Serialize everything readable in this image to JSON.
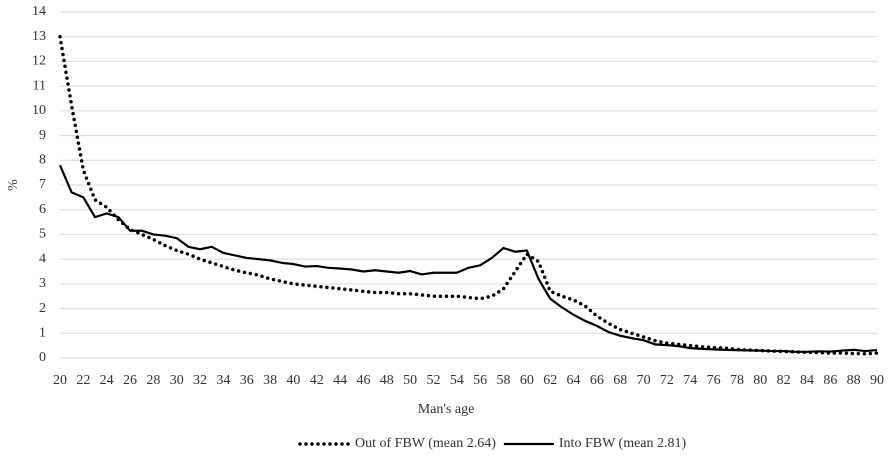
{
  "chart_data": {
    "type": "line",
    "x_label": "Man's age",
    "y_label": "%",
    "x": [
      20,
      21,
      22,
      23,
      24,
      25,
      26,
      27,
      28,
      29,
      30,
      31,
      32,
      33,
      34,
      35,
      36,
      37,
      38,
      39,
      40,
      41,
      42,
      43,
      44,
      45,
      46,
      47,
      48,
      49,
      50,
      51,
      52,
      53,
      54,
      55,
      56,
      57,
      58,
      59,
      60,
      61,
      62,
      63,
      64,
      65,
      66,
      67,
      68,
      69,
      70,
      71,
      72,
      73,
      74,
      75,
      76,
      77,
      78,
      79,
      80,
      81,
      82,
      83,
      84,
      85,
      86,
      87,
      88,
      89,
      90
    ],
    "xlim": [
      20,
      90
    ],
    "xticks": [
      20,
      22,
      24,
      26,
      28,
      30,
      32,
      34,
      36,
      38,
      40,
      42,
      44,
      46,
      48,
      50,
      52,
      54,
      56,
      58,
      60,
      62,
      64,
      66,
      68,
      70,
      72,
      74,
      76,
      78,
      80,
      82,
      84,
      86,
      88,
      90
    ],
    "ylim": [
      0,
      14
    ],
    "yticks": [
      0,
      1,
      2,
      3,
      4,
      5,
      6,
      7,
      8,
      9,
      10,
      11,
      12,
      13,
      14
    ],
    "grid": true,
    "legend": "bottom",
    "series": [
      {
        "name": "Out of FBW (mean 2.64)",
        "color": "#000000",
        "style": "dotted",
        "values": [
          13,
          10.2,
          7.6,
          6.4,
          6.1,
          5.6,
          5.2,
          5.0,
          4.8,
          4.55,
          4.35,
          4.2,
          4.0,
          3.85,
          3.7,
          3.55,
          3.45,
          3.35,
          3.2,
          3.1,
          3.0,
          2.95,
          2.9,
          2.85,
          2.8,
          2.75,
          2.7,
          2.65,
          2.65,
          2.6,
          2.6,
          2.55,
          2.5,
          2.5,
          2.5,
          2.45,
          2.4,
          2.5,
          2.8,
          3.5,
          4.2,
          3.9,
          2.7,
          2.5,
          2.35,
          2.1,
          1.7,
          1.4,
          1.15,
          1.0,
          0.85,
          0.7,
          0.6,
          0.55,
          0.5,
          0.45,
          0.42,
          0.4,
          0.35,
          0.32,
          0.3,
          0.28,
          0.27,
          0.25,
          0.23,
          0.22,
          0.2,
          0.2,
          0.18,
          0.17,
          0.2
        ]
      },
      {
        "name": "Into FBW (mean 2.81)",
        "color": "#000000",
        "style": "solid",
        "values": [
          7.8,
          6.7,
          6.5,
          5.7,
          5.85,
          5.7,
          5.15,
          5.15,
          5.0,
          4.95,
          4.85,
          4.5,
          4.4,
          4.5,
          4.25,
          4.15,
          4.05,
          4.0,
          3.95,
          3.85,
          3.8,
          3.7,
          3.72,
          3.65,
          3.62,
          3.58,
          3.5,
          3.55,
          3.5,
          3.45,
          3.52,
          3.38,
          3.45,
          3.45,
          3.45,
          3.65,
          3.75,
          4.05,
          4.45,
          4.3,
          4.35,
          3.2,
          2.4,
          2.05,
          1.75,
          1.5,
          1.3,
          1.05,
          0.9,
          0.8,
          0.72,
          0.55,
          0.52,
          0.48,
          0.4,
          0.37,
          0.35,
          0.33,
          0.32,
          0.31,
          0.3,
          0.28,
          0.28,
          0.25,
          0.25,
          0.27,
          0.26,
          0.3,
          0.33,
          0.28,
          0.32
        ]
      }
    ]
  }
}
